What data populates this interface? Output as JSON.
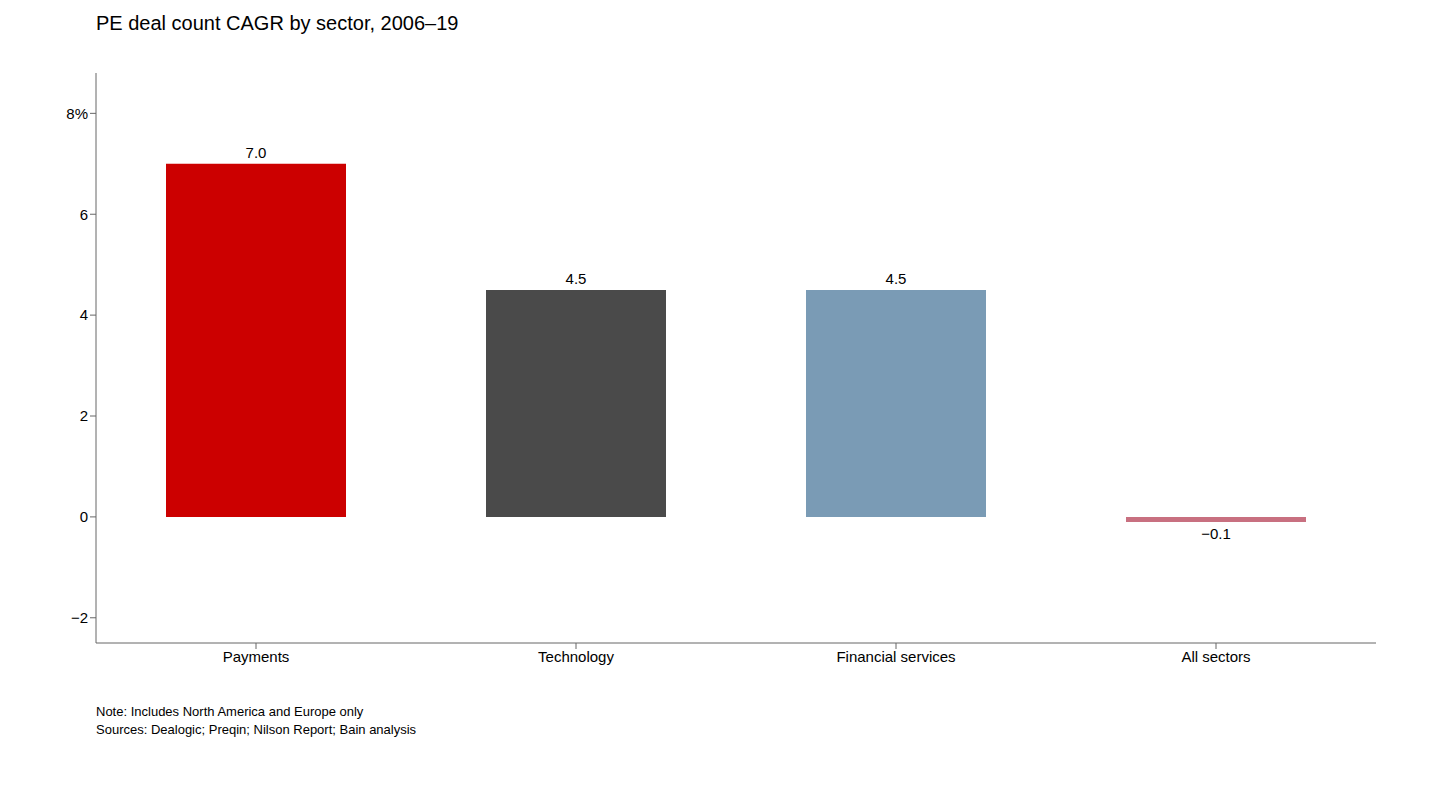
{
  "chart_data": {
    "type": "bar",
    "title": "PE deal count CAGR by sector, 2006–19",
    "categories": [
      "Payments",
      "Technology",
      "Financial services",
      "All sectors"
    ],
    "values": [
      7.0,
      4.5,
      4.5,
      -0.1
    ],
    "value_labels": [
      "7.0",
      "4.5",
      "4.5",
      "−0.1"
    ],
    "colors": [
      "#cc0000",
      "#4a4a4a",
      "#7a9bb5",
      "#c87080"
    ],
    "data_labels": true,
    "ylim": [
      -2.5,
      8.8
    ],
    "yticks": [
      {
        "value": -2,
        "label": "−2"
      },
      0,
      2,
      4,
      6,
      {
        "value": 8,
        "label": "8%"
      }
    ],
    "grid": false,
    "annotations": [
      "Note: Includes North America and Europe only",
      "Sources: Dealogic; Preqin; Nilson Report; Bain analysis"
    ]
  }
}
